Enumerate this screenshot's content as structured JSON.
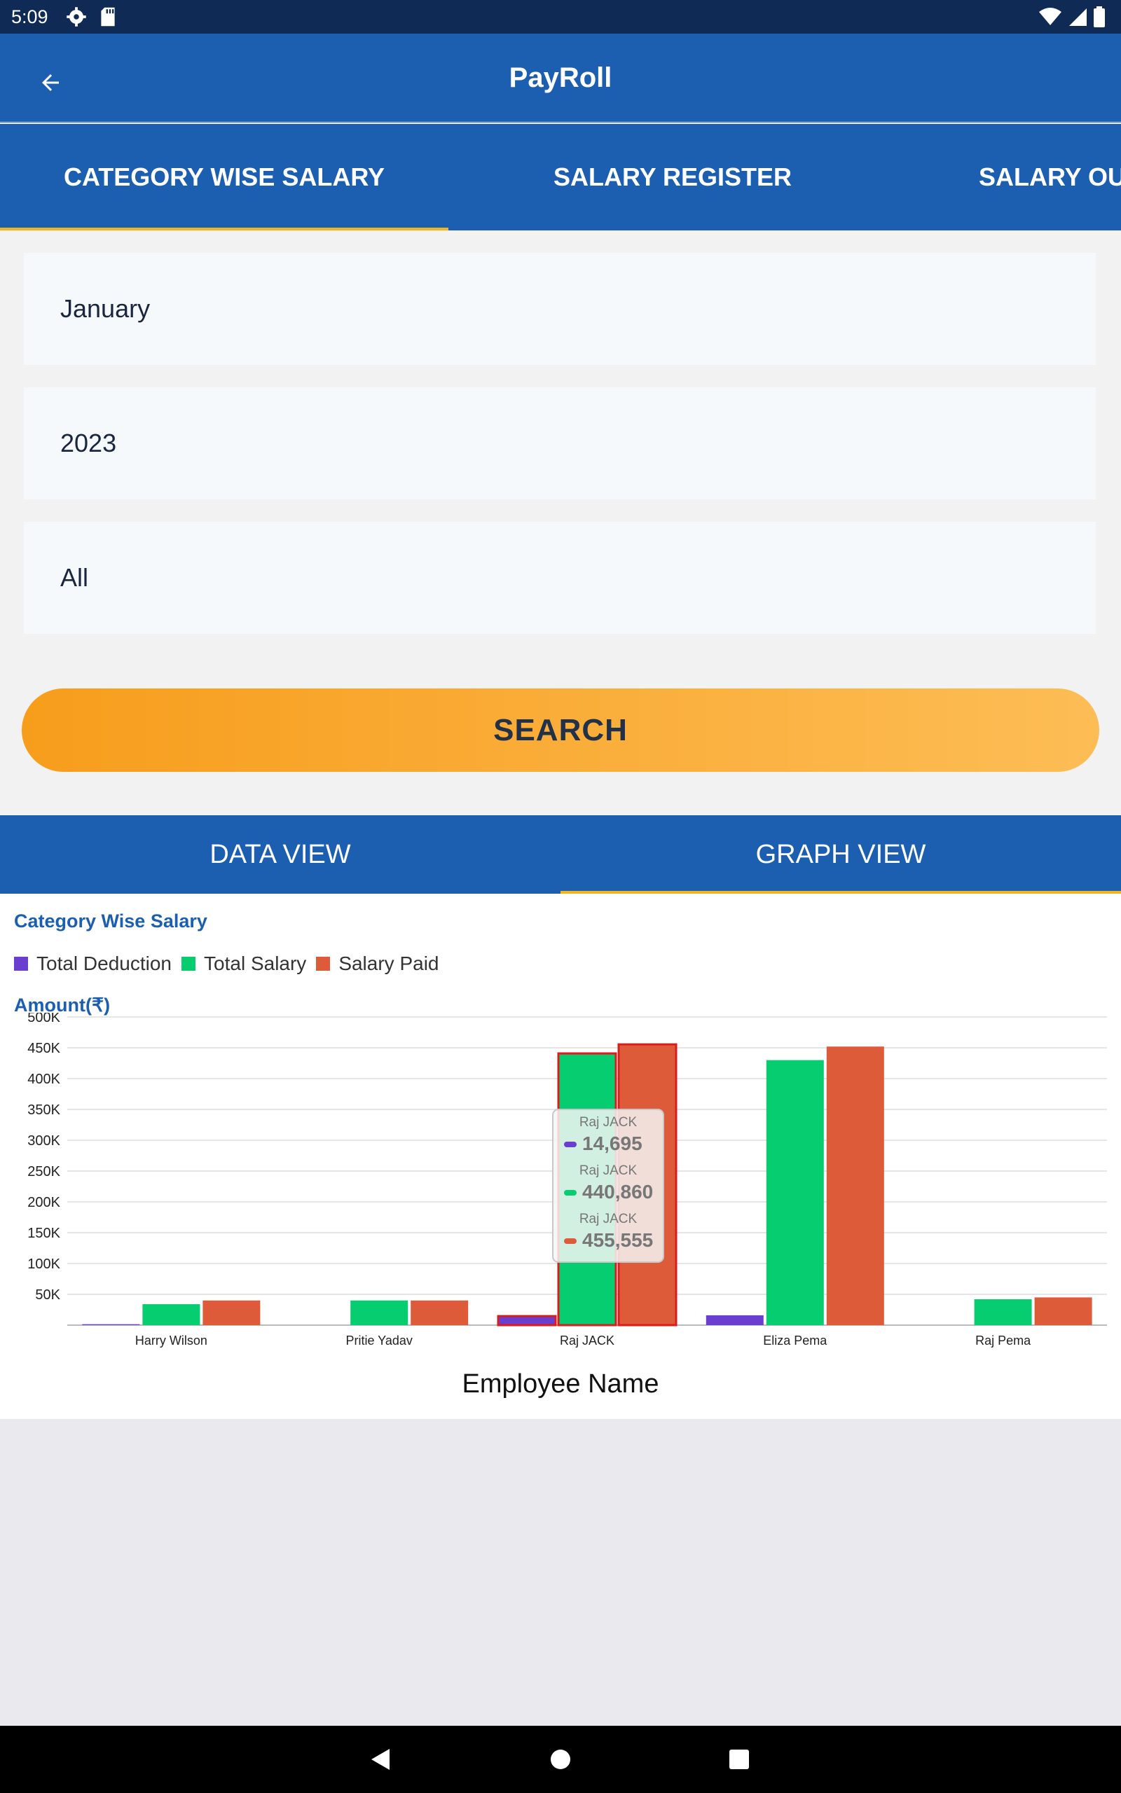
{
  "status_bar": {
    "time": "5:09"
  },
  "app_bar": {
    "title": "PayRoll"
  },
  "top_tabs": [
    {
      "label": "CATEGORY WISE SALARY",
      "active": true
    },
    {
      "label": "SALARY REGISTER",
      "active": false
    },
    {
      "label": "SALARY OUT",
      "active": false
    }
  ],
  "filters": {
    "month": "January",
    "year": "2023",
    "category": "All"
  },
  "search_label": "SEARCH",
  "view_tabs": [
    {
      "label": "DATA VIEW",
      "active": false
    },
    {
      "label": "GRAPH VIEW",
      "active": true
    }
  ],
  "colors": {
    "primary": "#1c5fb0",
    "accent": "#f5b418",
    "deduction": "#6a3fd0",
    "total_salary": "#06cd6f",
    "salary_paid": "#de5b3a"
  },
  "chart_data": {
    "type": "bar",
    "title": "Category Wise Salary",
    "ylabel": "Amount(₹)",
    "xlabel": "Employee Name",
    "ylim": [
      0,
      500000
    ],
    "yticks": [
      "50K",
      "100K",
      "150K",
      "200K",
      "250K",
      "300K",
      "350K",
      "400K",
      "450K",
      "500K"
    ],
    "grid": true,
    "legend_position": "top-left",
    "categories": [
      "Harry Wilson",
      "Pritie Yadav",
      "Raj JACK",
      "Eliza Pema",
      "Raj Pema"
    ],
    "series": [
      {
        "name": "Total Deduction",
        "values": [
          1500,
          0,
          14695,
          16000,
          0
        ]
      },
      {
        "name": "Total Salary",
        "values": [
          34000,
          40000,
          440860,
          430000,
          42000
        ]
      },
      {
        "name": "Salary Paid",
        "values": [
          40000,
          40000,
          455555,
          452000,
          45000
        ]
      }
    ],
    "tooltip": {
      "category": "Raj JACK",
      "entries": [
        {
          "label": "Raj JACK",
          "value": "14,695"
        },
        {
          "label": "Raj JACK",
          "value": "440,860"
        },
        {
          "label": "Raj JACK",
          "value": "455,555"
        }
      ]
    }
  }
}
